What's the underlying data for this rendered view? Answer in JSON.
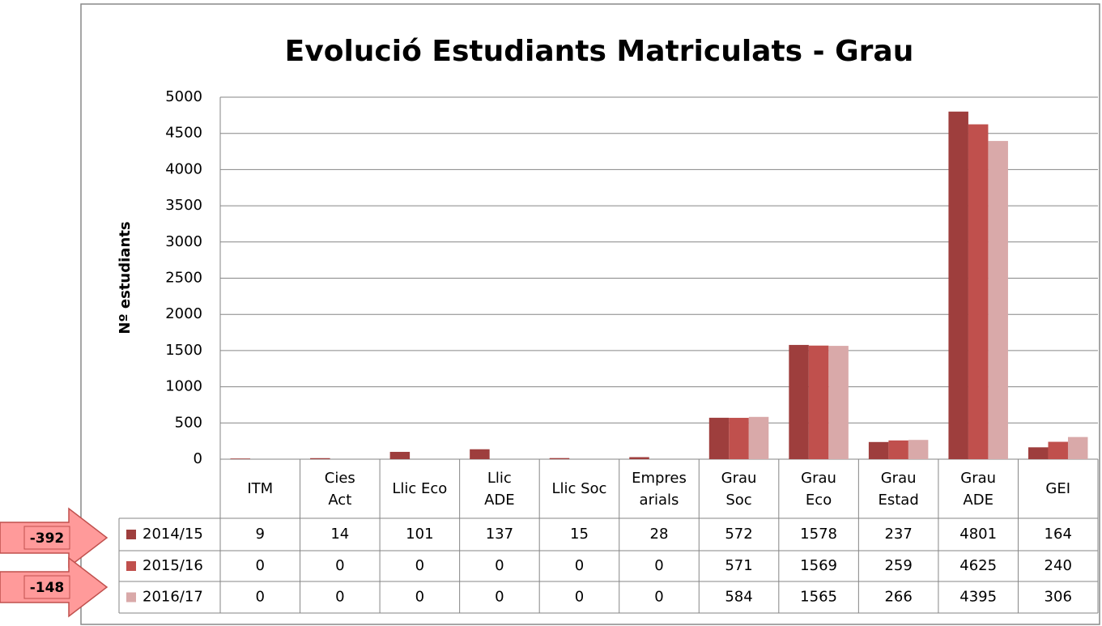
{
  "chart_data": {
    "type": "bar",
    "title": "Evolució Estudiants Matriculats - Grau",
    "y_label": "Nº estudiants",
    "categories": [
      "ITM",
      "Cies\nAct",
      "Llic Eco",
      "Llic\nADE",
      "Llic Soc",
      "Empres\narials",
      "Grau\nSoc",
      "Grau\nEco",
      "Grau\nEstad",
      "Grau\nADE",
      "GEI"
    ],
    "series": [
      {
        "name": "2014/15",
        "color": "#9e3e3d",
        "values": [
          9,
          14,
          101,
          137,
          15,
          28,
          572,
          1578,
          237,
          4801,
          164
        ]
      },
      {
        "name": "2015/16",
        "color": "#c0504d",
        "values": [
          0,
          0,
          0,
          0,
          0,
          0,
          571,
          1569,
          259,
          4625,
          240
        ]
      },
      {
        "name": "2016/17",
        "color": "#d9a9a9",
        "values": [
          0,
          0,
          0,
          0,
          0,
          0,
          584,
          1565,
          266,
          4395,
          306
        ]
      }
    ],
    "ylim": [
      0,
      5000
    ],
    "yticks": [
      0,
      500,
      1000,
      1500,
      2000,
      2500,
      3000,
      3500,
      4000,
      4500,
      5000
    ],
    "grid": true,
    "annotations": [
      "-392",
      "-148"
    ]
  }
}
